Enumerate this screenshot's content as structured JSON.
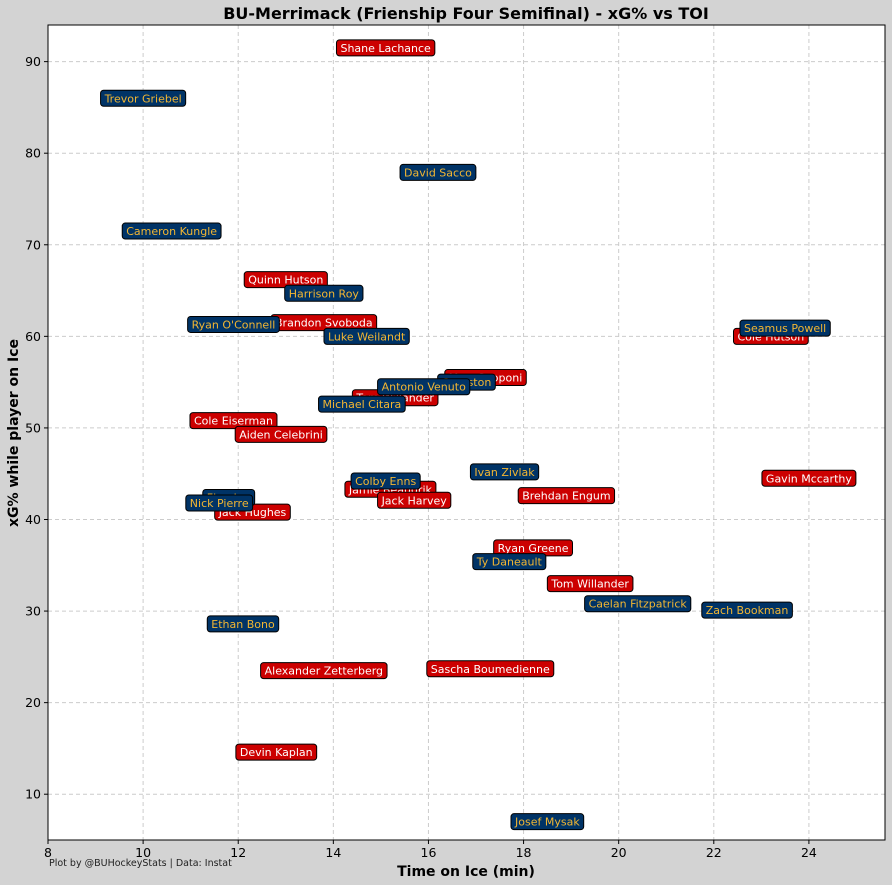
{
  "credit": "Plot by @BUHockeyStats | Data: Instat",
  "colors": {
    "figure_bg": "#d3d3d3",
    "plot_bg": "#ffffff",
    "bu_fill": "#cc0000",
    "bu_text": "#ffffff",
    "merrimack_fill": "#003366",
    "merrimack_text": "#f2b632",
    "grid": "#cccccc"
  },
  "chart_data": {
    "type": "scatter",
    "title": "BU-Merrimack (Frienship Four Semifinal) - xG% vs TOI",
    "xlabel": "Time on Ice (min)",
    "ylabel": "xG% while player on Ice",
    "xlim": [
      8,
      25.6
    ],
    "ylim": [
      5,
      94
    ],
    "xticks": [
      8,
      10,
      12,
      14,
      16,
      18,
      20,
      22,
      24
    ],
    "yticks": [
      10,
      20,
      30,
      40,
      50,
      60,
      70,
      80,
      90
    ],
    "grid": true,
    "label_style": "boxed player names",
    "series": [
      {
        "team": "BU",
        "points": [
          {
            "name": "Shane Lachance",
            "x": 15.1,
            "y": 91.5
          },
          {
            "name": "Quinn Hutson",
            "x": 13.0,
            "y": 66.2
          },
          {
            "name": "Brandon Svoboda",
            "x": 13.8,
            "y": 61.5
          },
          {
            "name": "Cole Hutson",
            "x": 23.2,
            "y": 60.0
          },
          {
            "name": "Matt Copponi",
            "x": 17.2,
            "y": 55.5
          },
          {
            "name": "Tom Willander",
            "x": 15.3,
            "y": 53.3
          },
          {
            "name": "Cole Eiserman",
            "x": 11.9,
            "y": 50.8
          },
          {
            "name": "Aiden Celebrini",
            "x": 12.9,
            "y": 49.3
          },
          {
            "name": "Gavin Mccarthy",
            "x": 24.0,
            "y": 44.5
          },
          {
            "name": "Jamie Beaudrik",
            "x": 15.2,
            "y": 43.3
          },
          {
            "name": "Brehdan Engum",
            "x": 18.9,
            "y": 42.6
          },
          {
            "name": "Jack Harvey",
            "x": 15.7,
            "y": 42.1
          },
          {
            "name": "Jack Hughes",
            "x": 12.3,
            "y": 40.8
          },
          {
            "name": "Ryan Greene",
            "x": 18.2,
            "y": 36.9
          },
          {
            "name": "Tom Willander",
            "x": 19.4,
            "y": 33.0
          },
          {
            "name": "Alexander Zetterberg",
            "x": 13.8,
            "y": 23.5
          },
          {
            "name": "Sascha Boumedienne",
            "x": 17.3,
            "y": 23.7
          },
          {
            "name": "Devin Kaplan",
            "x": 12.8,
            "y": 14.6
          }
        ]
      },
      {
        "team": "Merrimack",
        "points": [
          {
            "name": "Trevor Griebel",
            "x": 10.0,
            "y": 86.0
          },
          {
            "name": "David Sacco",
            "x": 16.2,
            "y": 77.9
          },
          {
            "name": "Cameron Kungle",
            "x": 10.6,
            "y": 71.5
          },
          {
            "name": "Harrison Roy",
            "x": 13.8,
            "y": 64.7
          },
          {
            "name": "Ryan O'Connell",
            "x": 11.9,
            "y": 61.3
          },
          {
            "name": "Seamus Powell",
            "x": 23.5,
            "y": 60.9
          },
          {
            "name": "Luke Weilandt",
            "x": 14.7,
            "y": 60.0
          },
          {
            "name": "Cranston",
            "x": 16.8,
            "y": 55.0
          },
          {
            "name": "Antonio Venuto",
            "x": 15.9,
            "y": 54.5
          },
          {
            "name": "Michael Citara",
            "x": 14.6,
            "y": 52.6
          },
          {
            "name": "Ivan Zivlak",
            "x": 17.6,
            "y": 45.2
          },
          {
            "name": "Colby Enns",
            "x": 15.1,
            "y": 44.2
          },
          {
            "name": "Fleming",
            "x": 11.8,
            "y": 42.4
          },
          {
            "name": "Nick Pierre",
            "x": 11.6,
            "y": 41.8
          },
          {
            "name": "Ty Daneault",
            "x": 17.7,
            "y": 35.4
          },
          {
            "name": "Caelan Fitzpatrick",
            "x": 20.4,
            "y": 30.8
          },
          {
            "name": "Zach Bookman",
            "x": 22.7,
            "y": 30.1
          },
          {
            "name": "Ethan Bono",
            "x": 12.1,
            "y": 28.6
          },
          {
            "name": "Josef Mysak",
            "x": 18.5,
            "y": 7.0
          }
        ]
      }
    ]
  }
}
